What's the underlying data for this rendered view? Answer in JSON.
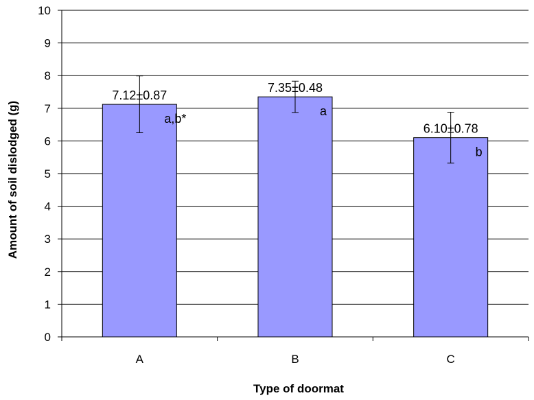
{
  "chart_data": {
    "type": "bar",
    "title": "",
    "xlabel": "Type of doormat",
    "ylabel": "Amount of soil dislodged (g)",
    "categories": [
      "A",
      "B",
      "C"
    ],
    "values": [
      7.12,
      7.35,
      6.1
    ],
    "error": [
      0.87,
      0.48,
      0.78
    ],
    "value_labels": [
      "7.12±0.87",
      "7.35±0.48",
      "6.10±0.78"
    ],
    "significance_labels": [
      "a,b*",
      "a",
      "b"
    ],
    "ylim": [
      0,
      10
    ],
    "yticks": [
      0,
      1,
      2,
      3,
      4,
      5,
      6,
      7,
      8,
      9,
      10
    ],
    "grid": true,
    "legend": "none",
    "colors": {
      "bar_fill": "#9999ff",
      "bar_stroke": "#000000",
      "grid": "#000000"
    }
  }
}
